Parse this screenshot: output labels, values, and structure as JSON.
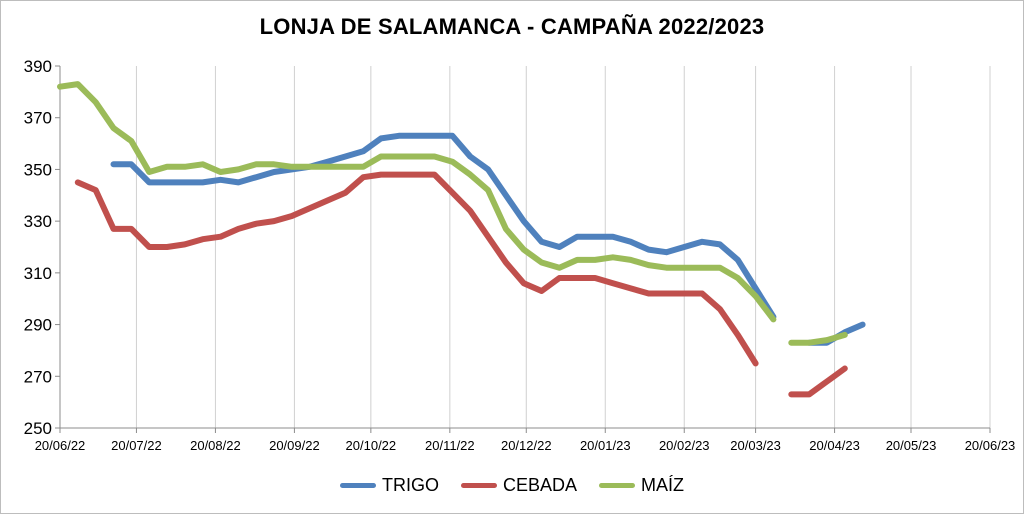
{
  "chart_data": {
    "type": "line",
    "title": "LONJA DE SALAMANCA - CAMPAÑA 2022/2023",
    "xlabel": "",
    "ylabel": "",
    "ylim": [
      250,
      390
    ],
    "yticks": [
      250,
      270,
      290,
      310,
      330,
      350,
      370,
      390
    ],
    "xlim": [
      "2022-06-20",
      "2023-06-20"
    ],
    "xtick_labels": [
      "20/06/22",
      "20/07/22",
      "20/08/22",
      "20/09/22",
      "20/10/22",
      "20/11/22",
      "20/12/22",
      "20/01/23",
      "20/02/23",
      "20/03/23",
      "20/04/23",
      "20/05/23",
      "20/06/23"
    ],
    "xtick_dates": [
      "2022-06-20",
      "2022-07-20",
      "2022-08-20",
      "2022-09-20",
      "2022-10-20",
      "2022-11-20",
      "2022-12-20",
      "2023-01-20",
      "2023-02-20",
      "2023-03-20",
      "2023-04-20",
      "2023-05-20",
      "2023-06-20"
    ],
    "grid": "vertical",
    "legend_position": "bottom",
    "series": [
      {
        "name": "TRIGO",
        "color": "#4f81bd",
        "segments": [
          [
            [
              "2022-07-11",
              352
            ],
            [
              "2022-07-18",
              352
            ],
            [
              "2022-07-25",
              345
            ],
            [
              "2022-08-01",
              345
            ],
            [
              "2022-08-08",
              345
            ],
            [
              "2022-08-15",
              345
            ],
            [
              "2022-08-22",
              346
            ],
            [
              "2022-08-29",
              345
            ],
            [
              "2022-09-05",
              347
            ],
            [
              "2022-09-12",
              349
            ],
            [
              "2022-09-19",
              350
            ],
            [
              "2022-09-26",
              351
            ],
            [
              "2022-10-03",
              353
            ],
            [
              "2022-10-10",
              355
            ],
            [
              "2022-10-17",
              357
            ],
            [
              "2022-10-24",
              362
            ],
            [
              "2022-10-31",
              363
            ],
            [
              "2022-11-07",
              363
            ],
            [
              "2022-11-14",
              363
            ],
            [
              "2022-11-21",
              363
            ],
            [
              "2022-11-28",
              355
            ],
            [
              "2022-12-05",
              350
            ],
            [
              "2022-12-12",
              340
            ],
            [
              "2022-12-19",
              330
            ],
            [
              "2022-12-26",
              322
            ],
            [
              "2023-01-02",
              320
            ],
            [
              "2023-01-09",
              324
            ],
            [
              "2023-01-16",
              324
            ],
            [
              "2023-01-23",
              324
            ],
            [
              "2023-01-30",
              322
            ],
            [
              "2023-02-06",
              319
            ],
            [
              "2023-02-13",
              318
            ],
            [
              "2023-02-20",
              320
            ],
            [
              "2023-02-27",
              322
            ],
            [
              "2023-03-06",
              321
            ],
            [
              "2023-03-13",
              315
            ],
            [
              "2023-03-20",
              304
            ],
            [
              "2023-03-27",
              293
            ]
          ],
          [
            [
              "2023-04-10",
              283
            ],
            [
              "2023-04-17",
              283
            ],
            [
              "2023-04-24",
              287
            ],
            [
              "2023-05-01",
              290
            ]
          ]
        ]
      },
      {
        "name": "CEBADA",
        "color": "#c0504d",
        "segments": [
          [
            [
              "2022-06-27",
              345
            ],
            [
              "2022-07-04",
              342
            ],
            [
              "2022-07-11",
              327
            ],
            [
              "2022-07-18",
              327
            ],
            [
              "2022-07-25",
              320
            ],
            [
              "2022-08-01",
              320
            ],
            [
              "2022-08-08",
              321
            ],
            [
              "2022-08-15",
              323
            ],
            [
              "2022-08-22",
              324
            ],
            [
              "2022-08-29",
              327
            ],
            [
              "2022-09-05",
              329
            ],
            [
              "2022-09-12",
              330
            ],
            [
              "2022-09-19",
              332
            ],
            [
              "2022-09-26",
              335
            ],
            [
              "2022-10-03",
              338
            ],
            [
              "2022-10-10",
              341
            ],
            [
              "2022-10-17",
              347
            ],
            [
              "2022-10-24",
              348
            ],
            [
              "2022-10-31",
              348
            ],
            [
              "2022-11-07",
              348
            ],
            [
              "2022-11-14",
              348
            ],
            [
              "2022-11-21",
              341
            ],
            [
              "2022-11-28",
              334
            ],
            [
              "2022-12-05",
              324
            ],
            [
              "2022-12-12",
              314
            ],
            [
              "2022-12-19",
              306
            ],
            [
              "2022-12-26",
              303
            ],
            [
              "2023-01-02",
              308
            ],
            [
              "2023-01-09",
              308
            ],
            [
              "2023-01-16",
              308
            ],
            [
              "2023-01-23",
              306
            ],
            [
              "2023-01-30",
              304
            ],
            [
              "2023-02-06",
              302
            ],
            [
              "2023-02-13",
              302
            ],
            [
              "2023-02-20",
              302
            ],
            [
              "2023-02-27",
              302
            ],
            [
              "2023-03-06",
              296
            ],
            [
              "2023-03-13",
              286
            ],
            [
              "2023-03-20",
              275
            ]
          ],
          [
            [
              "2023-04-03",
              263
            ],
            [
              "2023-04-10",
              263
            ],
            [
              "2023-04-17",
              268
            ],
            [
              "2023-04-24",
              273
            ]
          ]
        ]
      },
      {
        "name": "MAÍZ",
        "color": "#9bbb59",
        "segments": [
          [
            [
              "2022-06-20",
              382
            ],
            [
              "2022-06-27",
              383
            ],
            [
              "2022-07-04",
              376
            ],
            [
              "2022-07-11",
              366
            ],
            [
              "2022-07-18",
              361
            ],
            [
              "2022-07-25",
              349
            ],
            [
              "2022-08-01",
              351
            ],
            [
              "2022-08-08",
              351
            ],
            [
              "2022-08-15",
              352
            ],
            [
              "2022-08-22",
              349
            ],
            [
              "2022-08-29",
              350
            ],
            [
              "2022-09-05",
              352
            ],
            [
              "2022-09-12",
              352
            ],
            [
              "2022-09-19",
              351
            ],
            [
              "2022-09-26",
              351
            ],
            [
              "2022-10-03",
              351
            ],
            [
              "2022-10-10",
              351
            ],
            [
              "2022-10-17",
              351
            ],
            [
              "2022-10-24",
              355
            ],
            [
              "2022-10-31",
              355
            ],
            [
              "2022-11-07",
              355
            ],
            [
              "2022-11-14",
              355
            ],
            [
              "2022-11-21",
              353
            ],
            [
              "2022-11-28",
              348
            ],
            [
              "2022-12-05",
              342
            ],
            [
              "2022-12-12",
              327
            ],
            [
              "2022-12-19",
              319
            ],
            [
              "2022-12-26",
              314
            ],
            [
              "2023-01-02",
              312
            ],
            [
              "2023-01-09",
              315
            ],
            [
              "2023-01-16",
              315
            ],
            [
              "2023-01-23",
              316
            ],
            [
              "2023-01-30",
              315
            ],
            [
              "2023-02-06",
              313
            ],
            [
              "2023-02-13",
              312
            ],
            [
              "2023-02-20",
              312
            ],
            [
              "2023-02-27",
              312
            ],
            [
              "2023-03-06",
              312
            ],
            [
              "2023-03-13",
              308
            ],
            [
              "2023-03-20",
              301
            ],
            [
              "2023-03-27",
              292
            ]
          ],
          [
            [
              "2023-04-03",
              283
            ],
            [
              "2023-04-10",
              283
            ],
            [
              "2023-04-17",
              284
            ],
            [
              "2023-04-24",
              286
            ]
          ]
        ]
      }
    ]
  }
}
